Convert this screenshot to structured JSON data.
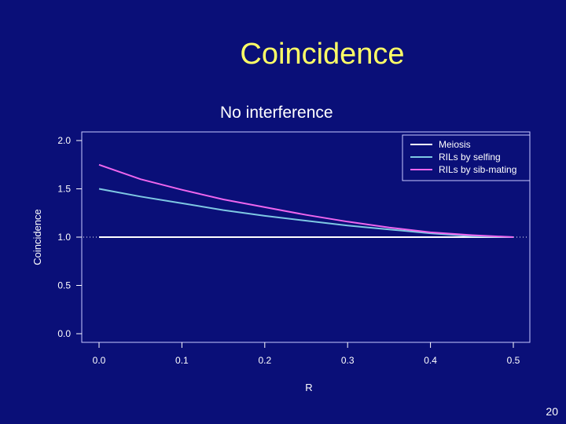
{
  "slide": {
    "title": "Coincidence",
    "page_number": "20"
  },
  "chart_data": {
    "type": "line",
    "title": "No interference",
    "xlabel": "R",
    "ylabel": "Coincidence",
    "xlim": [
      0.0,
      0.5
    ],
    "ylim": [
      0.0,
      2.0
    ],
    "x_ticks": [
      "0.0",
      "0.1",
      "0.2",
      "0.3",
      "0.4",
      "0.5"
    ],
    "y_ticks": [
      "0.0",
      "0.5",
      "1.0",
      "1.5",
      "2.0"
    ],
    "grid": false,
    "legend_position": "top-right",
    "series": [
      {
        "name": "Meiosis",
        "color": "#ffffff",
        "x": [
          0.0,
          0.05,
          0.1,
          0.15,
          0.2,
          0.25,
          0.3,
          0.35,
          0.4,
          0.45,
          0.5
        ],
        "y": [
          1.0,
          1.0,
          1.0,
          1.0,
          1.0,
          1.0,
          1.0,
          1.0,
          1.0,
          1.0,
          1.0
        ]
      },
      {
        "name": "RILs by selfing",
        "color": "#7ec8e3",
        "x": [
          0.0,
          0.05,
          0.1,
          0.15,
          0.2,
          0.25,
          0.3,
          0.35,
          0.4,
          0.45,
          0.5
        ],
        "y": [
          1.5,
          1.42,
          1.35,
          1.28,
          1.22,
          1.17,
          1.12,
          1.08,
          1.04,
          1.01,
          1.0
        ]
      },
      {
        "name": "RILs by sib-mating",
        "color": "#ee66ee",
        "x": [
          0.0,
          0.05,
          0.1,
          0.15,
          0.2,
          0.25,
          0.3,
          0.35,
          0.4,
          0.45,
          0.5
        ],
        "y": [
          1.75,
          1.6,
          1.49,
          1.39,
          1.31,
          1.23,
          1.16,
          1.1,
          1.05,
          1.02,
          1.0
        ]
      }
    ]
  }
}
